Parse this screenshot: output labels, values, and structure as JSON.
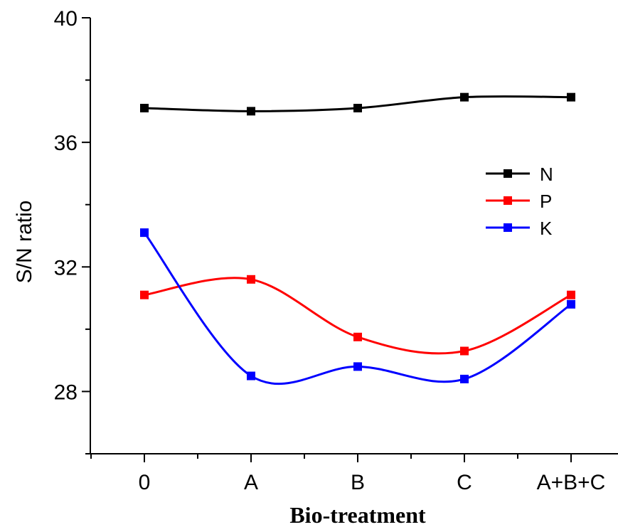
{
  "chart_data": {
    "type": "line",
    "title": "",
    "xlabel": "Bio-treatment",
    "ylabel": "S/N ratio",
    "categories": [
      "0",
      "A",
      "B",
      "C",
      "A+B+C"
    ],
    "ylim": [
      26,
      40
    ],
    "yticks": [
      28,
      32,
      36,
      40
    ],
    "y_minor_step": 2,
    "grid": false,
    "legend_position": "right",
    "series": [
      {
        "name": "N",
        "color": "#000000",
        "marker": "square",
        "values": [
          37.1,
          37.0,
          37.1,
          37.45,
          37.45
        ]
      },
      {
        "name": "P",
        "color": "#ff0000",
        "marker": "square",
        "values": [
          31.1,
          31.6,
          29.75,
          29.3,
          31.1
        ]
      },
      {
        "name": "K",
        "color": "#0000ff",
        "marker": "square",
        "values": [
          33.1,
          28.5,
          28.8,
          28.4,
          30.8
        ]
      }
    ]
  }
}
